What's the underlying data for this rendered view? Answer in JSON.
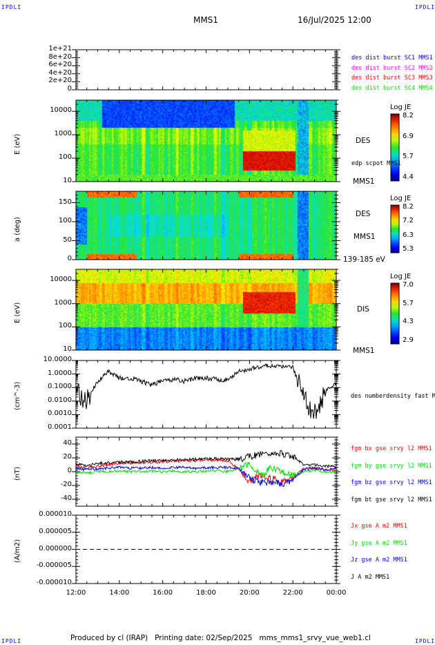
{
  "header": {
    "left_logo": "IPDLI",
    "right_logo": "IPDLI",
    "spacecraft": "MMS1",
    "datetime": "16/Jul/2025 12:00"
  },
  "footer": {
    "left_logo": "IPDLI",
    "right_logo": "IPDLI",
    "text": "Produced by cl (IRAP)   Printing date: 02/Sep/2025   mms_mms1_srvy_vue_web1.cl"
  },
  "chart_data": [
    {
      "type": "line",
      "ylabel": "",
      "ylim": [
        0,
        1e+21
      ],
      "yticks": [
        "0",
        "2e+20",
        "4e+20",
        "6e+20",
        "8e+20",
        "1e+21"
      ],
      "ytick_values": [
        0,
        2e+20,
        4e+20,
        6e+20,
        8e+20,
        1e+21
      ],
      "reference_line": {
        "value": 0,
        "style": "dashed"
      },
      "legend": [
        {
          "text": "des dist burst SC1 MMS1",
          "color": "#0000ff"
        },
        {
          "text": "des dist burst SC2 MMS2",
          "color": "#ff00ff"
        },
        {
          "text": "des dist burst SC3 MMS3",
          "color": "#ff0000"
        },
        {
          "text": "des dist burst SC4 MMS4",
          "color": "#00e000"
        }
      ]
    },
    {
      "type": "heatmap",
      "ylabel": "E (eV)",
      "yscale": "log",
      "ylim": [
        10,
        30000
      ],
      "yticks": [
        "10",
        "100",
        "1000",
        "10000"
      ],
      "ytick_values": [
        10,
        100,
        1000,
        10000
      ],
      "colorbar": {
        "title": "Log JE",
        "ticks": [
          "8.2",
          "6.9",
          "5.7",
          "4.4"
        ],
        "range": [
          4.4,
          8.2
        ]
      },
      "labels": {
        "instrument": "DES",
        "overlay": "edp scpot MMS1",
        "spacecraft": "MMS1"
      }
    },
    {
      "type": "heatmap",
      "ylabel": "a (deg)",
      "ylim": [
        0,
        180
      ],
      "yticks": [
        "0",
        "50",
        "100",
        "150"
      ],
      "ytick_values": [
        0,
        50,
        100,
        150
      ],
      "colorbar": {
        "title": "Log JE",
        "ticks": [
          "8.2",
          "7.2",
          "6.3",
          "5.3"
        ],
        "range": [
          5.3,
          8.2
        ]
      },
      "labels": {
        "instrument": "DES",
        "spacecraft": "MMS1",
        "energy_range": "139-185 eV"
      }
    },
    {
      "type": "heatmap",
      "ylabel": "E (eV)",
      "yscale": "log",
      "ylim": [
        10,
        30000
      ],
      "yticks": [
        "10",
        "100",
        "1000",
        "10000"
      ],
      "ytick_values": [
        10,
        100,
        1000,
        10000
      ],
      "colorbar": {
        "title": "Log JE",
        "ticks": [
          "7.0",
          "5.7",
          "4.3",
          "2.9"
        ],
        "range": [
          2.9,
          7.0
        ]
      },
      "labels": {
        "instrument": "DIS",
        "spacecraft": "MMS1"
      }
    },
    {
      "type": "line",
      "ylabel": "(cm^-3)",
      "yscale": "log",
      "ylim": [
        0.0001,
        10
      ],
      "yticks": [
        "10.0000",
        "1.0000",
        "0.1000",
        "0.0100",
        "0.0010",
        "0.0001"
      ],
      "ytick_values": [
        10,
        1,
        0.1,
        0.01,
        0.001,
        0.0001
      ],
      "x_hours": [
        12,
        12.5,
        13,
        13.5,
        14,
        14.5,
        15,
        15.5,
        16,
        16.5,
        17,
        17.5,
        18,
        18.5,
        19,
        19.5,
        20,
        20.5,
        21,
        21.5,
        22,
        22.5,
        23,
        23.5,
        24
      ],
      "series": [
        {
          "name": "des numberdensity fast M",
          "color": "#000000",
          "values": [
            0.05,
            0.01,
            0.3,
            1.5,
            0.5,
            0.5,
            0.3,
            0.15,
            0.3,
            0.4,
            0.3,
            0.5,
            0.5,
            0.4,
            0.35,
            1.5,
            2.5,
            3.5,
            4.0,
            4.0,
            3.0,
            0.02,
            0.001,
            0.05,
            0.2
          ]
        }
      ]
    },
    {
      "type": "line",
      "ylabel": "(nT)",
      "ylim": [
        -50,
        50
      ],
      "yticks": [
        "40",
        "20",
        "0",
        "-20",
        "-40"
      ],
      "ytick_values": [
        40,
        20,
        0,
        -20,
        -40
      ],
      "x_hours": [
        12,
        12.5,
        13,
        13.5,
        14,
        14.5,
        15,
        15.5,
        16,
        16.5,
        17,
        17.5,
        18,
        18.5,
        19,
        19.5,
        20,
        20.5,
        21,
        21.5,
        22,
        22.5,
        23,
        23.5,
        24
      ],
      "series": [
        {
          "name": "fgm bx gse srvy l2 MMS1",
          "color": "#ff0000",
          "values": [
            8,
            5,
            8,
            10,
            12,
            12,
            13,
            14,
            14,
            15,
            16,
            16,
            17,
            17,
            16,
            5,
            -15,
            -5,
            -10,
            -15,
            -10,
            5,
            5,
            3,
            2
          ]
        },
        {
          "name": "fgm by gse srvy l2 MMS1",
          "color": "#00e000",
          "values": [
            0,
            -2,
            0,
            0,
            1,
            0,
            0,
            1,
            0,
            1,
            0,
            0,
            1,
            1,
            0,
            5,
            10,
            -5,
            5,
            0,
            -5,
            0,
            2,
            0,
            0
          ]
        },
        {
          "name": "fgm bz gse srvy l2 MMS1",
          "color": "#0000ff",
          "values": [
            5,
            3,
            4,
            5,
            6,
            5,
            5,
            6,
            5,
            6,
            6,
            5,
            6,
            6,
            6,
            5,
            -10,
            -15,
            -15,
            -18,
            -12,
            3,
            5,
            3,
            5
          ]
        },
        {
          "name": "fgm bt gse srvy l2 MMS1",
          "color": "#000000",
          "values": [
            12,
            8,
            12,
            13,
            14,
            14,
            15,
            16,
            16,
            17,
            18,
            18,
            19,
            19,
            18,
            18,
            22,
            25,
            24,
            26,
            22,
            10,
            10,
            8,
            7
          ]
        }
      ]
    },
    {
      "type": "line",
      "ylabel": "(A/m2)",
      "ylim": [
        -1e-05,
        1e-05
      ],
      "yticks": [
        "0.000010",
        "0.000005",
        "0.000000",
        "-0.000005",
        "-0.000010"
      ],
      "ytick_values": [
        1e-05,
        5e-06,
        0,
        -5e-06,
        -1e-05
      ],
      "reference_line": {
        "value": 0,
        "style": "dashed"
      },
      "legend": [
        {
          "text": "Jx gse A m2 MMS1",
          "color": "#ff0000"
        },
        {
          "text": "Jy gse A m2 MMS1",
          "color": "#00e000"
        },
        {
          "text": "Jz gse A m2 MMS1",
          "color": "#0000ff"
        },
        {
          "text": "J A m2 MMS1",
          "color": "#000000"
        }
      ]
    }
  ],
  "x_axis": {
    "ticks": [
      "12:00",
      "14:00",
      "16:00",
      "18:00",
      "20:00",
      "22:00",
      "00:00"
    ],
    "range_hours": [
      12,
      24
    ]
  }
}
